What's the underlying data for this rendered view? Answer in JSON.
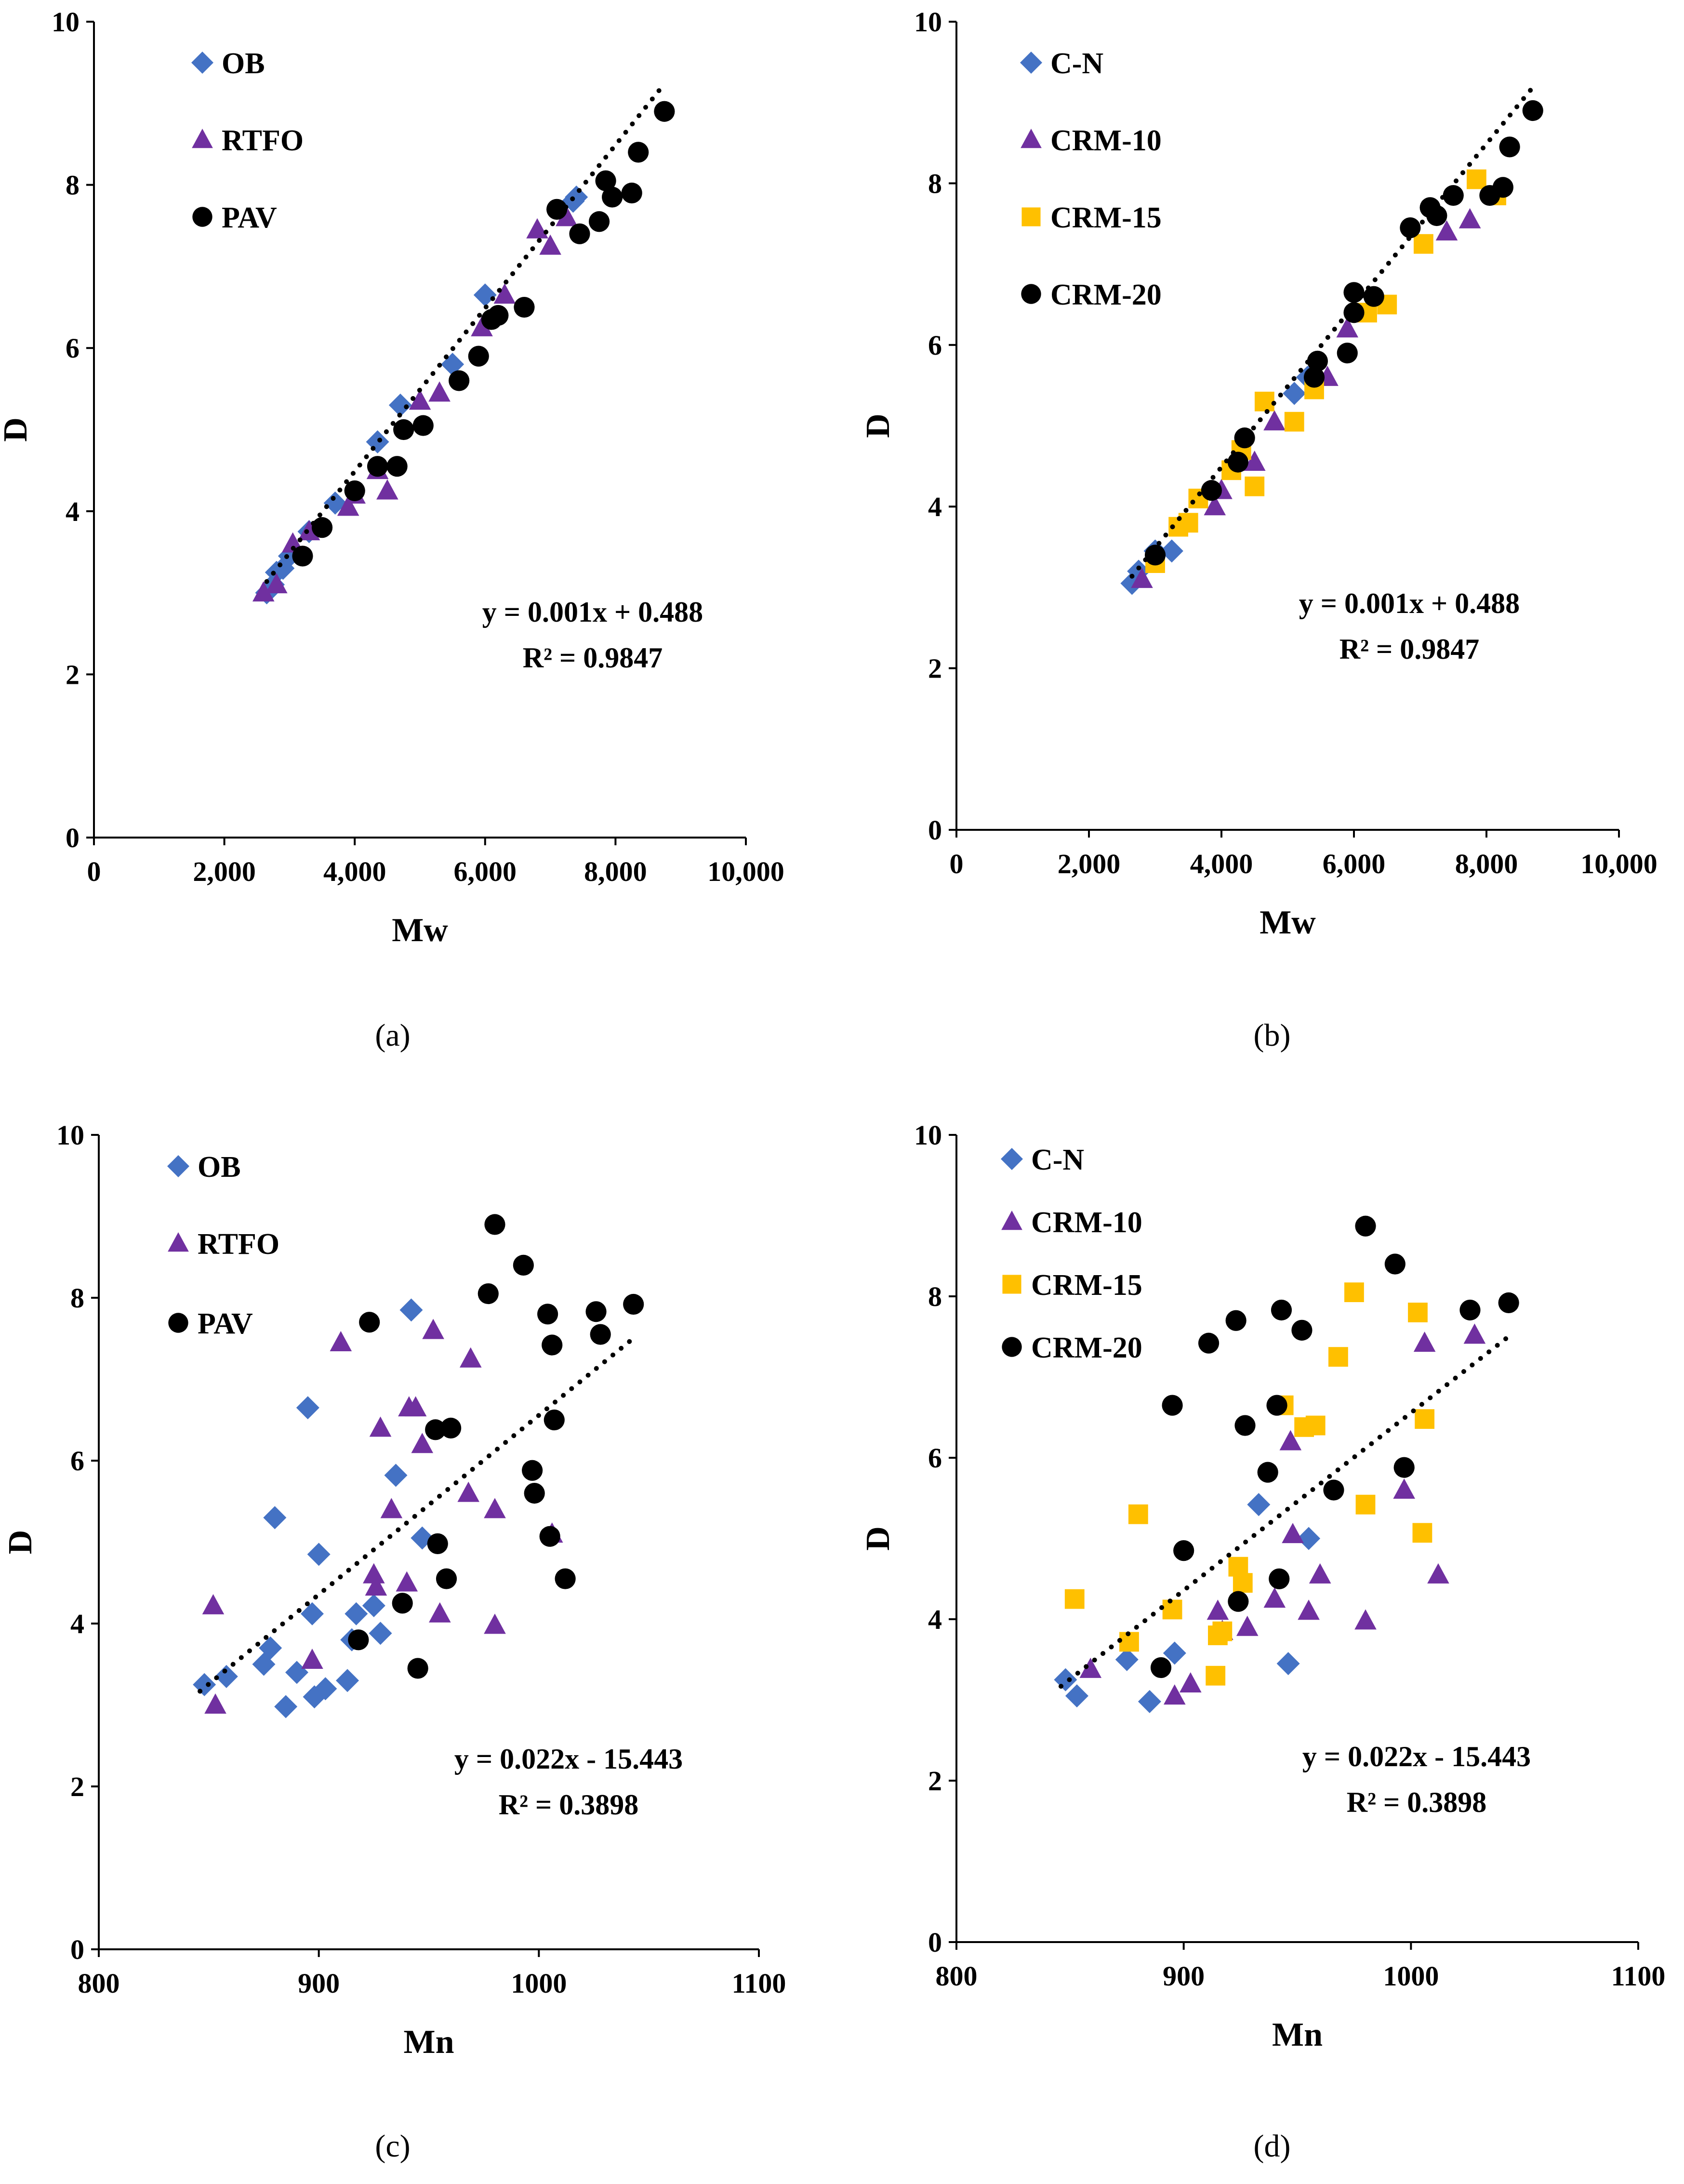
{
  "colors": {
    "blue": "#4472C4",
    "purple": "#7030A0",
    "yellow": "#FFC000",
    "black": "#000000"
  },
  "chart_data": [
    {
      "id": "a",
      "type": "scatter",
      "caption": "(a)",
      "xlabel": "Mw",
      "ylabel": "D",
      "xlim": [
        0,
        10000
      ],
      "ylim": [
        0,
        10
      ],
      "xticks": [
        "0",
        "2,000",
        "4,000",
        "6,000",
        "8,000",
        "10,000"
      ],
      "yticks": [
        "0",
        "2",
        "4",
        "6",
        "8",
        "10"
      ],
      "equation": "y = 0.001x + 0.488",
      "r2": "R² = 0.9847",
      "trendline": {
        "slope": 0.001,
        "intercept": 0.488,
        "x_range": [
          2650,
          8750
        ]
      },
      "legend_position": "top-left",
      "series": [
        {
          "name": "OB",
          "marker": "diamond",
          "color": "blue",
          "points": [
            [
              2650,
              3.0
            ],
            [
              2750,
              3.1
            ],
            [
              2800,
              3.25
            ],
            [
              2900,
              3.3
            ],
            [
              3000,
              3.45
            ],
            [
              3300,
              3.75
            ],
            [
              3700,
              4.1
            ],
            [
              4350,
              4.85
            ],
            [
              4700,
              5.3
            ],
            [
              5500,
              5.8
            ],
            [
              6000,
              6.65
            ],
            [
              7400,
              7.85
            ],
            [
              7350,
              7.8
            ]
          ]
        },
        {
          "name": "RTFO",
          "marker": "triangle",
          "color": "purple",
          "points": [
            [
              2600,
              3.0
            ],
            [
              2800,
              3.1
            ],
            [
              3050,
              3.6
            ],
            [
              3300,
              3.75
            ],
            [
              3900,
              4.05
            ],
            [
              4000,
              4.2
            ],
            [
              4350,
              4.5
            ],
            [
              4500,
              4.25
            ],
            [
              5000,
              5.35
            ],
            [
              5300,
              5.45
            ],
            [
              5950,
              6.25
            ],
            [
              6300,
              6.65
            ],
            [
              6800,
              7.45
            ],
            [
              7000,
              7.25
            ],
            [
              7250,
              7.6
            ]
          ]
        },
        {
          "name": "PAV",
          "marker": "circle",
          "color": "black",
          "points": [
            [
              3200,
              3.45
            ],
            [
              3500,
              3.8
            ],
            [
              4000,
              4.25
            ],
            [
              4350,
              4.55
            ],
            [
              4650,
              4.55
            ],
            [
              4750,
              5.0
            ],
            [
              5050,
              5.05
            ],
            [
              5600,
              5.6
            ],
            [
              5900,
              5.9
            ],
            [
              6100,
              6.35
            ],
            [
              6200,
              6.4
            ],
            [
              6600,
              6.5
            ],
            [
              7100,
              7.7
            ],
            [
              7450,
              7.4
            ],
            [
              7750,
              7.55
            ],
            [
              7850,
              8.05
            ],
            [
              7950,
              7.85
            ],
            [
              8250,
              7.9
            ],
            [
              8350,
              8.4
            ],
            [
              8750,
              8.9
            ]
          ]
        }
      ]
    },
    {
      "id": "b",
      "type": "scatter",
      "caption": "(b)",
      "xlabel": "Mw",
      "ylabel": "D",
      "xlim": [
        0,
        10000
      ],
      "ylim": [
        0,
        10
      ],
      "xticks": [
        "0",
        "2,000",
        "4,000",
        "6,000",
        "8,000",
        "10,000"
      ],
      "yticks": [
        "0",
        "2",
        "4",
        "6",
        "8",
        "10"
      ],
      "equation": "y = 0.001x + 0.488",
      "r2": "R² = 0.9847",
      "trendline": {
        "slope": 0.001,
        "intercept": 0.488,
        "x_range": [
          2650,
          8750
        ]
      },
      "legend_position": "top-left",
      "series": [
        {
          "name": "C-N",
          "marker": "diamond",
          "color": "blue",
          "points": [
            [
              2650,
              3.05
            ],
            [
              2750,
              3.2
            ],
            [
              3000,
              3.45
            ],
            [
              3250,
              3.45
            ],
            [
              5100,
              5.4
            ],
            [
              5300,
              5.6
            ]
          ]
        },
        {
          "name": "CRM-10",
          "marker": "triangle",
          "color": "purple",
          "points": [
            [
              2800,
              3.1
            ],
            [
              3900,
              4.0
            ],
            [
              4000,
              4.2
            ],
            [
              4500,
              4.55
            ],
            [
              4800,
              5.05
            ],
            [
              5600,
              5.6
            ],
            [
              5900,
              6.2
            ],
            [
              7400,
              7.4
            ],
            [
              7750,
              7.55
            ]
          ]
        },
        {
          "name": "CRM-15",
          "marker": "square",
          "color": "yellow",
          "points": [
            [
              3000,
              3.3
            ],
            [
              3350,
              3.75
            ],
            [
              3500,
              3.8
            ],
            [
              3650,
              4.1
            ],
            [
              4150,
              4.45
            ],
            [
              4300,
              4.7
            ],
            [
              4500,
              4.25
            ],
            [
              4650,
              5.3
            ],
            [
              5100,
              5.05
            ],
            [
              5400,
              5.45
            ],
            [
              6200,
              6.4
            ],
            [
              6500,
              6.5
            ],
            [
              7050,
              7.25
            ],
            [
              7850,
              8.05
            ],
            [
              8150,
              7.85
            ]
          ]
        },
        {
          "name": "CRM-20",
          "marker": "circle",
          "color": "black",
          "points": [
            [
              3000,
              3.4
            ],
            [
              3850,
              4.2
            ],
            [
              4250,
              4.55
            ],
            [
              4350,
              4.85
            ],
            [
              5400,
              5.6
            ],
            [
              5450,
              5.8
            ],
            [
              5900,
              5.9
            ],
            [
              6000,
              6.4
            ],
            [
              6000,
              6.65
            ],
            [
              6300,
              6.6
            ],
            [
              6850,
              7.45
            ],
            [
              7150,
              7.7
            ],
            [
              7250,
              7.6
            ],
            [
              7500,
              7.85
            ],
            [
              8050,
              7.85
            ],
            [
              8250,
              7.95
            ],
            [
              8350,
              8.45
            ],
            [
              8700,
              8.9
            ]
          ]
        }
      ]
    },
    {
      "id": "c",
      "type": "scatter",
      "caption": "(c)",
      "xlabel": "Mn",
      "ylabel": "D",
      "xlim": [
        800,
        1100
      ],
      "ylim": [
        0,
        10
      ],
      "xticks": [
        "800",
        "900",
        "1000",
        "1100"
      ],
      "yticks": [
        "0",
        "2",
        "4",
        "6",
        "8",
        "10"
      ],
      "equation": "y = 0.022x - 15.443",
      "r2": "R² = 0.3898",
      "trendline": {
        "slope": 0.022,
        "intercept": -15.443,
        "x_range": [
          846,
          1043
        ]
      },
      "legend_position": "top-left",
      "series": [
        {
          "name": "OB",
          "marker": "diamond",
          "color": "blue",
          "points": [
            [
              848,
              3.25
            ],
            [
              858,
              3.35
            ],
            [
              875,
              3.5
            ],
            [
              878,
              3.7
            ],
            [
              880,
              5.3
            ],
            [
              885,
              2.98
            ],
            [
              890,
              3.4
            ],
            [
              895,
              6.65
            ],
            [
              897,
              4.12
            ],
            [
              898,
              3.1
            ],
            [
              900,
              4.85
            ],
            [
              903,
              3.2
            ],
            [
              913,
              3.3
            ],
            [
              915,
              3.8
            ],
            [
              917,
              4.12
            ],
            [
              925,
              4.22
            ],
            [
              928,
              3.88
            ],
            [
              935,
              5.82
            ],
            [
              942,
              7.85
            ],
            [
              947,
              5.05
            ]
          ]
        },
        {
          "name": "RTFO",
          "marker": "triangle",
          "color": "purple",
          "points": [
            [
              852,
              4.22
            ],
            [
              853,
              3.0
            ],
            [
              897,
              3.55
            ],
            [
              910,
              7.45
            ],
            [
              925,
              4.6
            ],
            [
              926,
              4.45
            ],
            [
              928,
              6.4
            ],
            [
              933,
              5.4
            ],
            [
              940,
              4.5
            ],
            [
              941,
              6.65
            ],
            [
              944,
              6.65
            ],
            [
              947,
              6.2
            ],
            [
              952,
              7.6
            ],
            [
              955,
              4.12
            ],
            [
              968,
              5.6
            ],
            [
              969,
              7.25
            ],
            [
              980,
              5.4
            ],
            [
              980,
              3.98
            ],
            [
              1006,
              5.1
            ]
          ]
        },
        {
          "name": "PAV",
          "marker": "circle",
          "color": "black",
          "points": [
            [
              918,
              3.8
            ],
            [
              923,
              7.7
            ],
            [
              938,
              4.25
            ],
            [
              945,
              3.45
            ],
            [
              953,
              6.38
            ],
            [
              954,
              4.98
            ],
            [
              958,
              4.55
            ],
            [
              960,
              6.4
            ],
            [
              977,
              8.05
            ],
            [
              980,
              8.9
            ],
            [
              993,
              8.4
            ],
            [
              997,
              5.88
            ],
            [
              998,
              5.6
            ],
            [
              1004,
              7.8
            ],
            [
              1005,
              5.07
            ],
            [
              1006,
              7.42
            ],
            [
              1007,
              6.5
            ],
            [
              1012,
              4.55
            ],
            [
              1026,
              7.83
            ],
            [
              1028,
              7.55
            ],
            [
              1043,
              7.92
            ]
          ]
        }
      ]
    },
    {
      "id": "d",
      "type": "scatter",
      "caption": "(d)",
      "xlabel": "Mn",
      "ylabel": "D",
      "xlim": [
        800,
        1100
      ],
      "ylim": [
        0,
        10
      ],
      "xticks": [
        "800",
        "900",
        "1000",
        "1100"
      ],
      "yticks": [
        "0",
        "2",
        "4",
        "6",
        "8",
        "10"
      ],
      "equation": "y = 0.022x - 15.443",
      "r2": "R² = 0.3898",
      "trendline": {
        "slope": 0.022,
        "intercept": -15.443,
        "x_range": [
          846,
          1043
        ]
      },
      "legend_position": "top-left",
      "series": [
        {
          "name": "C-N",
          "marker": "diamond",
          "color": "blue",
          "points": [
            [
              848,
              3.25
            ],
            [
              853,
              3.05
            ],
            [
              875,
              3.5
            ],
            [
              885,
              2.98
            ],
            [
              896,
              3.58
            ],
            [
              933,
              5.42
            ],
            [
              946,
              3.45
            ],
            [
              955,
              5.0
            ]
          ]
        },
        {
          "name": "CRM-10",
          "marker": "triangle",
          "color": "purple",
          "points": [
            [
              859,
              3.38
            ],
            [
              896,
              3.05
            ],
            [
              903,
              3.2
            ],
            [
              915,
              4.1
            ],
            [
              917,
              3.85
            ],
            [
              928,
              3.9
            ],
            [
              940,
              4.25
            ],
            [
              947,
              6.2
            ],
            [
              948,
              5.05
            ],
            [
              955,
              4.1
            ],
            [
              960,
              4.55
            ],
            [
              980,
              3.98
            ],
            [
              997,
              5.6
            ],
            [
              1006,
              7.42
            ],
            [
              1012,
              4.55
            ],
            [
              1028,
              7.52
            ]
          ]
        },
        {
          "name": "CRM-15",
          "marker": "square",
          "color": "yellow",
          "points": [
            [
              852,
              4.25
            ],
            [
              876,
              3.72
            ],
            [
              880,
              5.3
            ],
            [
              895,
              4.12
            ],
            [
              914,
              3.3
            ],
            [
              915,
              3.8
            ],
            [
              917,
              3.85
            ],
            [
              924,
              4.65
            ],
            [
              926,
              4.45
            ],
            [
              944,
              6.65
            ],
            [
              953,
              6.38
            ],
            [
              958,
              6.4
            ],
            [
              968,
              7.25
            ],
            [
              975,
              8.05
            ],
            [
              980,
              5.42
            ],
            [
              1003,
              7.8
            ],
            [
              1005,
              5.07
            ],
            [
              1006,
              6.48
            ]
          ]
        },
        {
          "name": "CRM-20",
          "marker": "circle",
          "color": "black",
          "points": [
            [
              890,
              3.4
            ],
            [
              895,
              6.65
            ],
            [
              900,
              4.85
            ],
            [
              911,
              7.42
            ],
            [
              923,
              7.7
            ],
            [
              924,
              4.22
            ],
            [
              927,
              6.4
            ],
            [
              937,
              5.82
            ],
            [
              941,
              6.65
            ],
            [
              942,
              4.5
            ],
            [
              943,
              7.83
            ],
            [
              952,
              7.58
            ],
            [
              966,
              5.6
            ],
            [
              980,
              8.87
            ],
            [
              993,
              8.4
            ],
            [
              997,
              5.88
            ],
            [
              1026,
              7.83
            ],
            [
              1043,
              7.92
            ]
          ]
        }
      ]
    }
  ]
}
